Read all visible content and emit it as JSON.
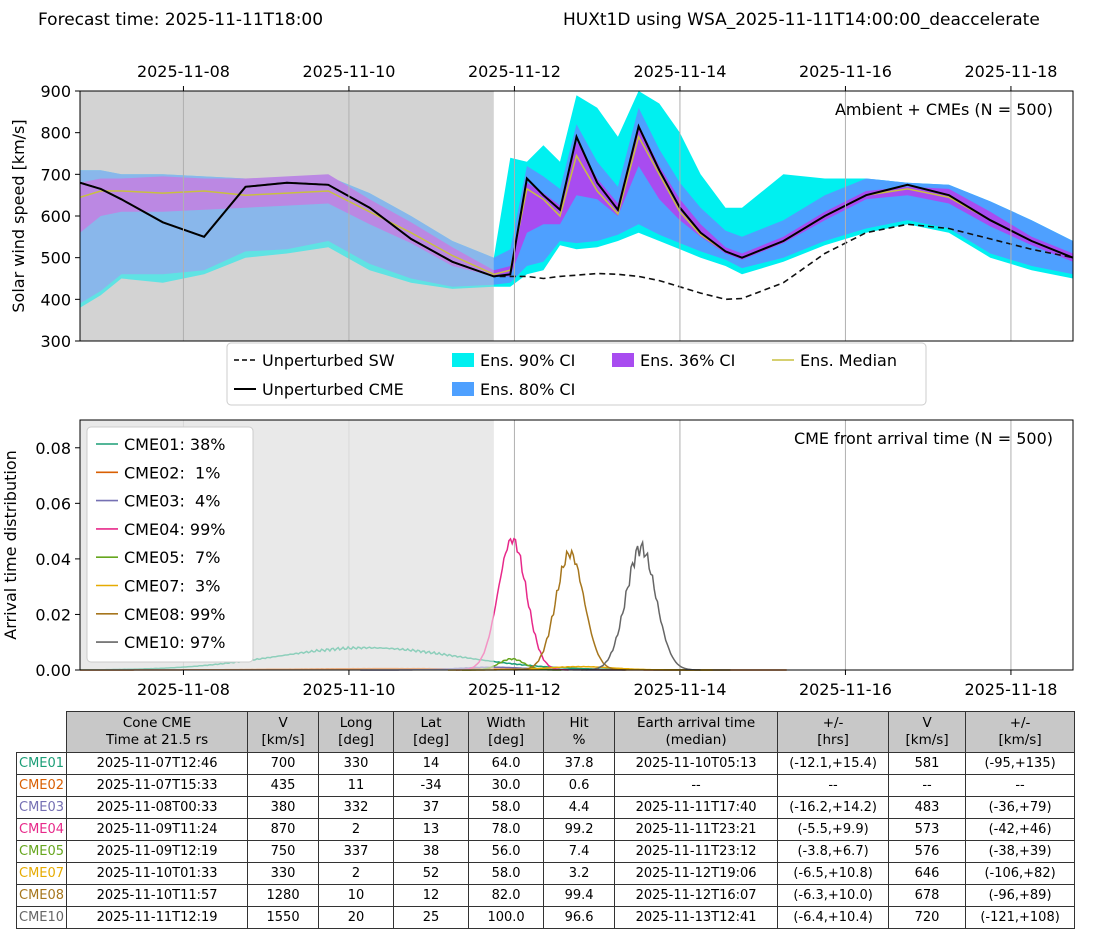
{
  "header": {
    "forecast_time": "Forecast time: 2025-11-11T18:00",
    "model_run": "HUXt1D using WSA_2025-11-11T14:00:00_deaccelerate"
  },
  "colors": {
    "ci90": "#00f0f0",
    "ci80": "#4ea0ff",
    "ci36": "#a84cf0",
    "median": "#c8c040",
    "shade": "#d3d3d3",
    "table_header": "#c8c8c8"
  },
  "chart_data": [
    {
      "type": "line",
      "title": "Ambient + CMEs (N = 500)",
      "ylabel": "Solar wind speed [km/s]",
      "ylim": [
        300,
        900
      ],
      "yticks": [
        300,
        400,
        500,
        600,
        700,
        800,
        900
      ],
      "xlim": [
        "2025-11-06T18:00",
        "2025-11-18T18:00"
      ],
      "xticks": [
        "2025-11-08",
        "2025-11-10",
        "2025-11-12",
        "2025-11-14",
        "2025-11-16",
        "2025-11-18"
      ],
      "grid": true,
      "observed_period_shaded": [
        "2025-11-06T18:00",
        "2025-11-11T18:00"
      ],
      "legend": [
        "Unperturbed SW",
        "Unperturbed CME",
        "Ens. 90% CI",
        "Ens. 80% CI",
        "Ens. 36% CI",
        "Ens. Median"
      ],
      "legend_position": "below",
      "x_days": [
        0,
        0.25,
        0.5,
        1,
        1.5,
        2,
        2.5,
        3,
        3.5,
        4,
        4.5,
        5,
        5.2,
        5.4,
        5.6,
        5.8,
        6,
        6.25,
        6.5,
        6.75,
        7,
        7.25,
        7.5,
        7.8,
        8,
        8.5,
        9,
        9.5,
        10,
        10.5,
        11,
        11.5,
        12
      ],
      "series": [
        {
          "name": "Unperturbed SW",
          "style": "dashed",
          "values": [
            680,
            665,
            640,
            585,
            550,
            670,
            680,
            675,
            620,
            545,
            490,
            455,
            455,
            455,
            450,
            455,
            458,
            462,
            460,
            455,
            445,
            430,
            415,
            400,
            402,
            440,
            510,
            560,
            580,
            570,
            545,
            520,
            500
          ]
        },
        {
          "name": "Unperturbed CME",
          "style": "solid",
          "values": [
            680,
            665,
            640,
            585,
            550,
            670,
            680,
            675,
            620,
            545,
            490,
            455,
            460,
            690,
            650,
            615,
            790,
            680,
            615,
            815,
            710,
            620,
            560,
            515,
            500,
            540,
            600,
            650,
            675,
            650,
            590,
            540,
            500
          ]
        },
        {
          "name": "Ens. Median",
          "values": [
            645,
            660,
            660,
            655,
            660,
            650,
            655,
            660,
            610,
            560,
            505,
            460,
            470,
            665,
            640,
            600,
            745,
            660,
            605,
            790,
            700,
            610,
            555,
            515,
            500,
            540,
            600,
            650,
            665,
            645,
            590,
            540,
            500
          ]
        },
        {
          "name": "Ens. 90% CI",
          "kind": "band",
          "lower": [
            380,
            410,
            450,
            440,
            460,
            500,
            510,
            525,
            470,
            440,
            425,
            430,
            430,
            460,
            470,
            530,
            520,
            525,
            540,
            560,
            540,
            520,
            500,
            480,
            460,
            490,
            530,
            560,
            580,
            560,
            500,
            470,
            450
          ],
          "upper": [
            710,
            710,
            700,
            700,
            695,
            690,
            685,
            695,
            655,
            600,
            540,
            500,
            740,
            730,
            770,
            730,
            890,
            860,
            790,
            900,
            870,
            800,
            700,
            620,
            620,
            700,
            690,
            690,
            680,
            675,
            635,
            590,
            540
          ]
        },
        {
          "name": "Ens. 80% CI",
          "kind": "band",
          "lower": [
            390,
            420,
            460,
            460,
            470,
            515,
            520,
            540,
            485,
            450,
            430,
            435,
            440,
            480,
            490,
            540,
            535,
            540,
            555,
            580,
            555,
            535,
            515,
            495,
            475,
            500,
            540,
            570,
            590,
            570,
            510,
            480,
            460
          ]
        },
        {
          "name": "Ens. 36% CI",
          "kind": "band",
          "lower": [
            560,
            600,
            610,
            610,
            615,
            620,
            625,
            630,
            580,
            535,
            480,
            455,
            455,
            560,
            580,
            580,
            650,
            640,
            600,
            720,
            640,
            590,
            550,
            510,
            495,
            535,
            590,
            640,
            650,
            630,
            575,
            530,
            490
          ],
          "upper": [
            680,
            690,
            690,
            695,
            690,
            690,
            695,
            700,
            640,
            585,
            525,
            470,
            480,
            680,
            655,
            625,
            780,
            690,
            630,
            820,
            720,
            640,
            580,
            525,
            510,
            550,
            610,
            660,
            670,
            665,
            610,
            550,
            510
          ]
        }
      ]
    },
    {
      "type": "line",
      "title": "CME front arrival time (N = 500)",
      "ylabel": "Arrival time distribution",
      "ylim": [
        0,
        0.09
      ],
      "yticks": [
        "0.00",
        "0.02",
        "0.04",
        "0.06",
        "0.08"
      ],
      "xlim": [
        "2025-11-06T18:00",
        "2025-11-18T18:00"
      ],
      "xticks": [
        "2025-11-08",
        "2025-11-10",
        "2025-11-12",
        "2025-11-14",
        "2025-11-16",
        "2025-11-18"
      ],
      "grid": true,
      "observed_period_shaded": [
        "2025-11-06T18:00",
        "2025-11-11T18:00"
      ],
      "legend_position": "top-left",
      "series": [
        {
          "name": "CME01",
          "label": "CME01: 38%",
          "color": "#1b9e77",
          "peak_time": "2025-11-10T05:13",
          "peak_value": 0.008,
          "spread_days": 1.1
        },
        {
          "name": "CME02",
          "label": "CME02:  1%",
          "color": "#d95f02",
          "peak_time": "2025-11-10T12:00",
          "peak_value": 0.0005,
          "spread_days": 1.2
        },
        {
          "name": "CME03",
          "label": "CME03:  4%",
          "color": "#7570b3",
          "peak_time": "2025-11-11T17:40",
          "peak_value": 0.001,
          "spread_days": 0.4
        },
        {
          "name": "CME04",
          "label": "CME04: 99%",
          "color": "#e7298a",
          "peak_time": "2025-11-11T23:21",
          "peak_value": 0.047,
          "spread_days": 0.17
        },
        {
          "name": "CME05",
          "label": "CME05:  7%",
          "color": "#66a61e",
          "peak_time": "2025-11-11T23:12",
          "peak_value": 0.004,
          "spread_days": 0.15
        },
        {
          "name": "CME07",
          "label": "CME07:  3%",
          "color": "#e6ab02",
          "peak_time": "2025-11-12T19:06",
          "peak_value": 0.0012,
          "spread_days": 0.4
        },
        {
          "name": "CME08",
          "label": "CME08: 99%",
          "color": "#a6761d",
          "peak_time": "2025-11-12T16:07",
          "peak_value": 0.042,
          "spread_days": 0.17
        },
        {
          "name": "CME10",
          "label": "CME10: 97%",
          "color": "#666666",
          "peak_time": "2025-11-13T12:41",
          "peak_value": 0.044,
          "spread_days": 0.18
        }
      ]
    }
  ],
  "table": {
    "headers": [
      [
        "Cone CME",
        "Time at 21.5 rs"
      ],
      [
        "V",
        "[km/s]"
      ],
      [
        "Long",
        "[deg]"
      ],
      [
        "Lat",
        "[deg]"
      ],
      [
        "Width",
        "[deg]"
      ],
      [
        "Hit",
        "%"
      ],
      [
        "Earth arrival time",
        "(median)"
      ],
      [
        "+/-",
        "[hrs]"
      ],
      [
        "V",
        "[km/s]"
      ],
      [
        "+/-",
        "[km/s]"
      ]
    ],
    "rows": [
      {
        "id": "CME01",
        "color": "#1b9e77",
        "cells": [
          "2025-11-07T12:46",
          "700",
          "330",
          "14",
          "64.0",
          "37.8",
          "2025-11-10T05:13",
          "(-12.1,+15.4)",
          "581",
          "(-95,+135)"
        ]
      },
      {
        "id": "CME02",
        "color": "#d95f02",
        "cells": [
          "2025-11-07T15:33",
          "435",
          "11",
          "-34",
          "30.0",
          "0.6",
          "--",
          "--",
          "--",
          "--"
        ]
      },
      {
        "id": "CME03",
        "color": "#7570b3",
        "cells": [
          "2025-11-08T00:33",
          "380",
          "332",
          "37",
          "58.0",
          "4.4",
          "2025-11-11T17:40",
          "(-16.2,+14.2)",
          "483",
          "(-36,+79)"
        ]
      },
      {
        "id": "CME04",
        "color": "#e7298a",
        "cells": [
          "2025-11-09T11:24",
          "870",
          "2",
          "13",
          "78.0",
          "99.2",
          "2025-11-11T23:21",
          "(-5.5,+9.9)",
          "573",
          "(-42,+46)"
        ]
      },
      {
        "id": "CME05",
        "color": "#66a61e",
        "cells": [
          "2025-11-09T12:19",
          "750",
          "337",
          "38",
          "56.0",
          "7.4",
          "2025-11-11T23:12",
          "(-3.8,+6.7)",
          "576",
          "(-38,+39)"
        ]
      },
      {
        "id": "CME07",
        "color": "#e6ab02",
        "cells": [
          "2025-11-10T01:33",
          "330",
          "2",
          "52",
          "58.0",
          "3.2",
          "2025-11-12T19:06",
          "(-6.5,+10.8)",
          "646",
          "(-106,+82)"
        ]
      },
      {
        "id": "CME08",
        "color": "#a6761d",
        "cells": [
          "2025-11-10T11:57",
          "1280",
          "10",
          "12",
          "82.0",
          "99.4",
          "2025-11-12T16:07",
          "(-6.3,+10.0)",
          "678",
          "(-96,+89)"
        ]
      },
      {
        "id": "CME10",
        "color": "#666666",
        "cells": [
          "2025-11-11T12:19",
          "1550",
          "20",
          "25",
          "100.0",
          "96.6",
          "2025-11-13T12:41",
          "(-6.4,+10.4)",
          "720",
          "(-121,+108)"
        ]
      }
    ]
  }
}
